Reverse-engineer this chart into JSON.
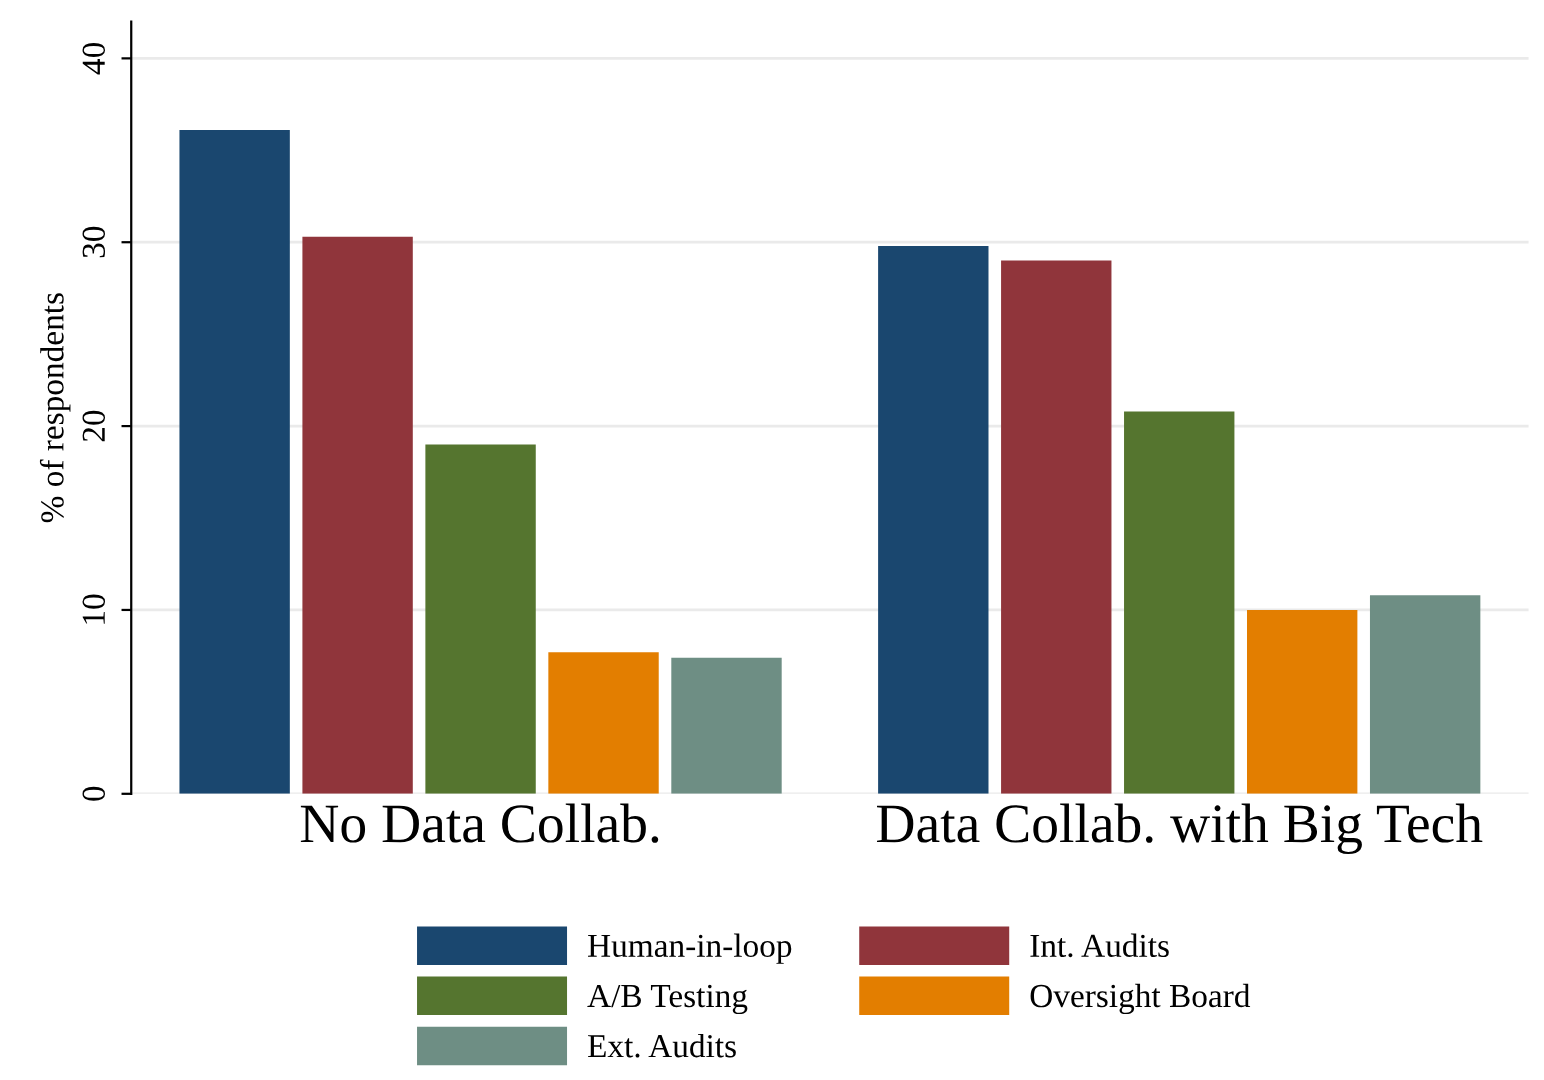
{
  "chart_data": {
    "type": "bar",
    "ylabel": "% of respondents",
    "categories": [
      "No Data Collab.",
      "Data Collab. with Big Tech"
    ],
    "series": [
      {
        "name": "Human-in-loop",
        "color": "#1a476f",
        "values": [
          36.1,
          29.8
        ]
      },
      {
        "name": "Int. Audits",
        "color": "#90353b",
        "values": [
          30.3,
          29.0
        ]
      },
      {
        "name": "A/B Testing",
        "color": "#55752f",
        "values": [
          19.0,
          20.8
        ]
      },
      {
        "name": "Oversight Board",
        "color": "#e37e00",
        "values": [
          7.7,
          10.0
        ]
      },
      {
        "name": "Ext. Audits",
        "color": "#6e8e84",
        "values": [
          7.4,
          10.8
        ]
      }
    ],
    "ylim": [
      0,
      42
    ],
    "yticks": [
      0,
      10,
      20,
      30,
      40
    ],
    "grid": "y",
    "legend": "bottom"
  }
}
